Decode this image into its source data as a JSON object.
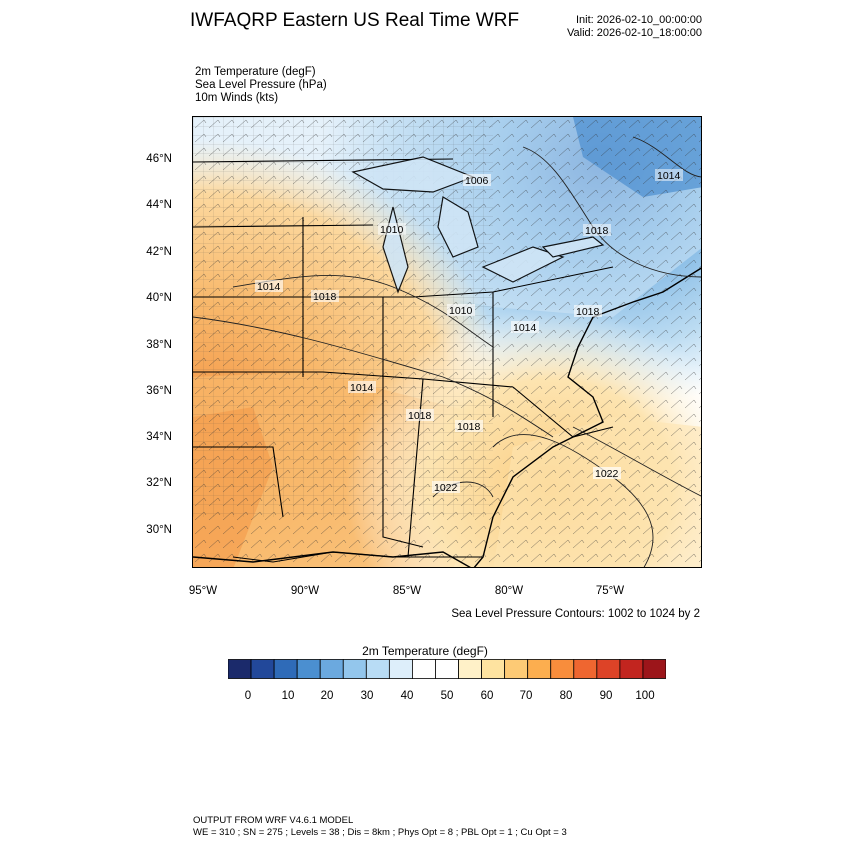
{
  "header": {
    "title": "IWFAQRP Eastern US Real Time WRF",
    "init": "Init: 2026-02-10_00:00:00",
    "valid": "Valid: 2026-02-10_18:00:00"
  },
  "fields": [
    "2m Temperature   (degF)",
    "Sea Level Pressure   (hPa)",
    "10m Winds   (kts)"
  ],
  "map": {
    "lat_labels": [
      "46°N",
      "44°N",
      "42°N",
      "40°N",
      "38°N",
      "36°N",
      "34°N",
      "32°N",
      "30°N"
    ],
    "lon_labels": [
      "95°W",
      "90°W",
      "85°W",
      "80°W",
      "75°W"
    ],
    "isobar_labels": [
      "1006",
      "1014",
      "1010",
      "1018",
      "1014",
      "1018",
      "1010",
      "1014",
      "1018",
      "1014",
      "1018",
      "1018",
      "1022",
      "1022"
    ],
    "contour_note": "Sea Level Pressure Contours: 1002 to 1024 by 2"
  },
  "colorbar": {
    "title": "2m Temperature  (degF)",
    "labels": [
      "0",
      "10",
      "20",
      "30",
      "40",
      "50",
      "60",
      "70",
      "80",
      "90",
      "100"
    ],
    "colors": [
      "#1b2a6b",
      "#22489a",
      "#2f6bb8",
      "#4b8fd0",
      "#6ba9df",
      "#93c6ec",
      "#b8dcf5",
      "#ddeefa",
      "#ffffff",
      "#ffffff",
      "#fff1c8",
      "#fee3a0",
      "#fdca75",
      "#fcae4f",
      "#f88d3c",
      "#ef6630",
      "#dd4327",
      "#c2251f",
      "#9c151a"
    ]
  },
  "footer": {
    "line1": "OUTPUT FROM WRF V4.6.1 MODEL",
    "line2": "WE = 310 ; SN = 275 ; Levels = 38 ; Dis = 8km ; Phys Opt = 8 ; PBL Opt = 1 ; Cu Opt = 3"
  }
}
